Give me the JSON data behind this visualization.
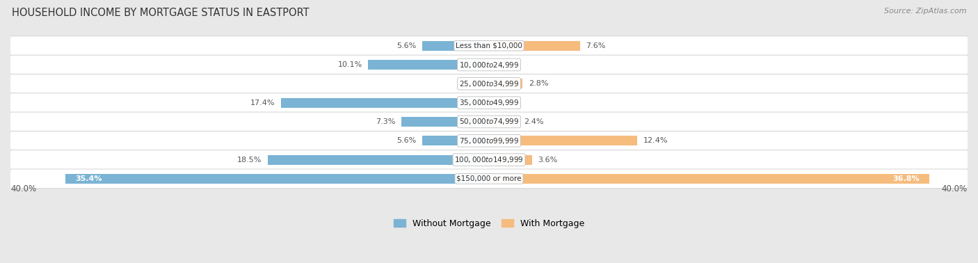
{
  "title": "HOUSEHOLD INCOME BY MORTGAGE STATUS IN EASTPORT",
  "source": "Source: ZipAtlas.com",
  "categories": [
    "Less than $10,000",
    "$10,000 to $24,999",
    "$25,000 to $34,999",
    "$35,000 to $49,999",
    "$50,000 to $74,999",
    "$75,000 to $99,999",
    "$100,000 to $149,999",
    "$150,000 or more"
  ],
  "without_mortgage": [
    5.6,
    10.1,
    0.0,
    17.4,
    7.3,
    5.6,
    18.5,
    35.4
  ],
  "with_mortgage": [
    7.6,
    0.0,
    2.8,
    0.0,
    2.4,
    12.4,
    3.6,
    36.8
  ],
  "color_without": "#7ab3d4",
  "color_with": "#f5bc7e",
  "axis_max": 40.0,
  "fig_bg_color": "#e8e8e8",
  "row_bg_color": "#ffffff",
  "row_edge_color": "#cccccc",
  "legend_labels": [
    "Without Mortgage",
    "With Mortgage"
  ],
  "label_color_dark": "#555555",
  "label_color_white": "#ffffff",
  "title_color": "#333333",
  "source_color": "#888888",
  "title_fontsize": 10.5,
  "source_fontsize": 8,
  "bar_label_fontsize": 8,
  "cat_label_fontsize": 7.5
}
